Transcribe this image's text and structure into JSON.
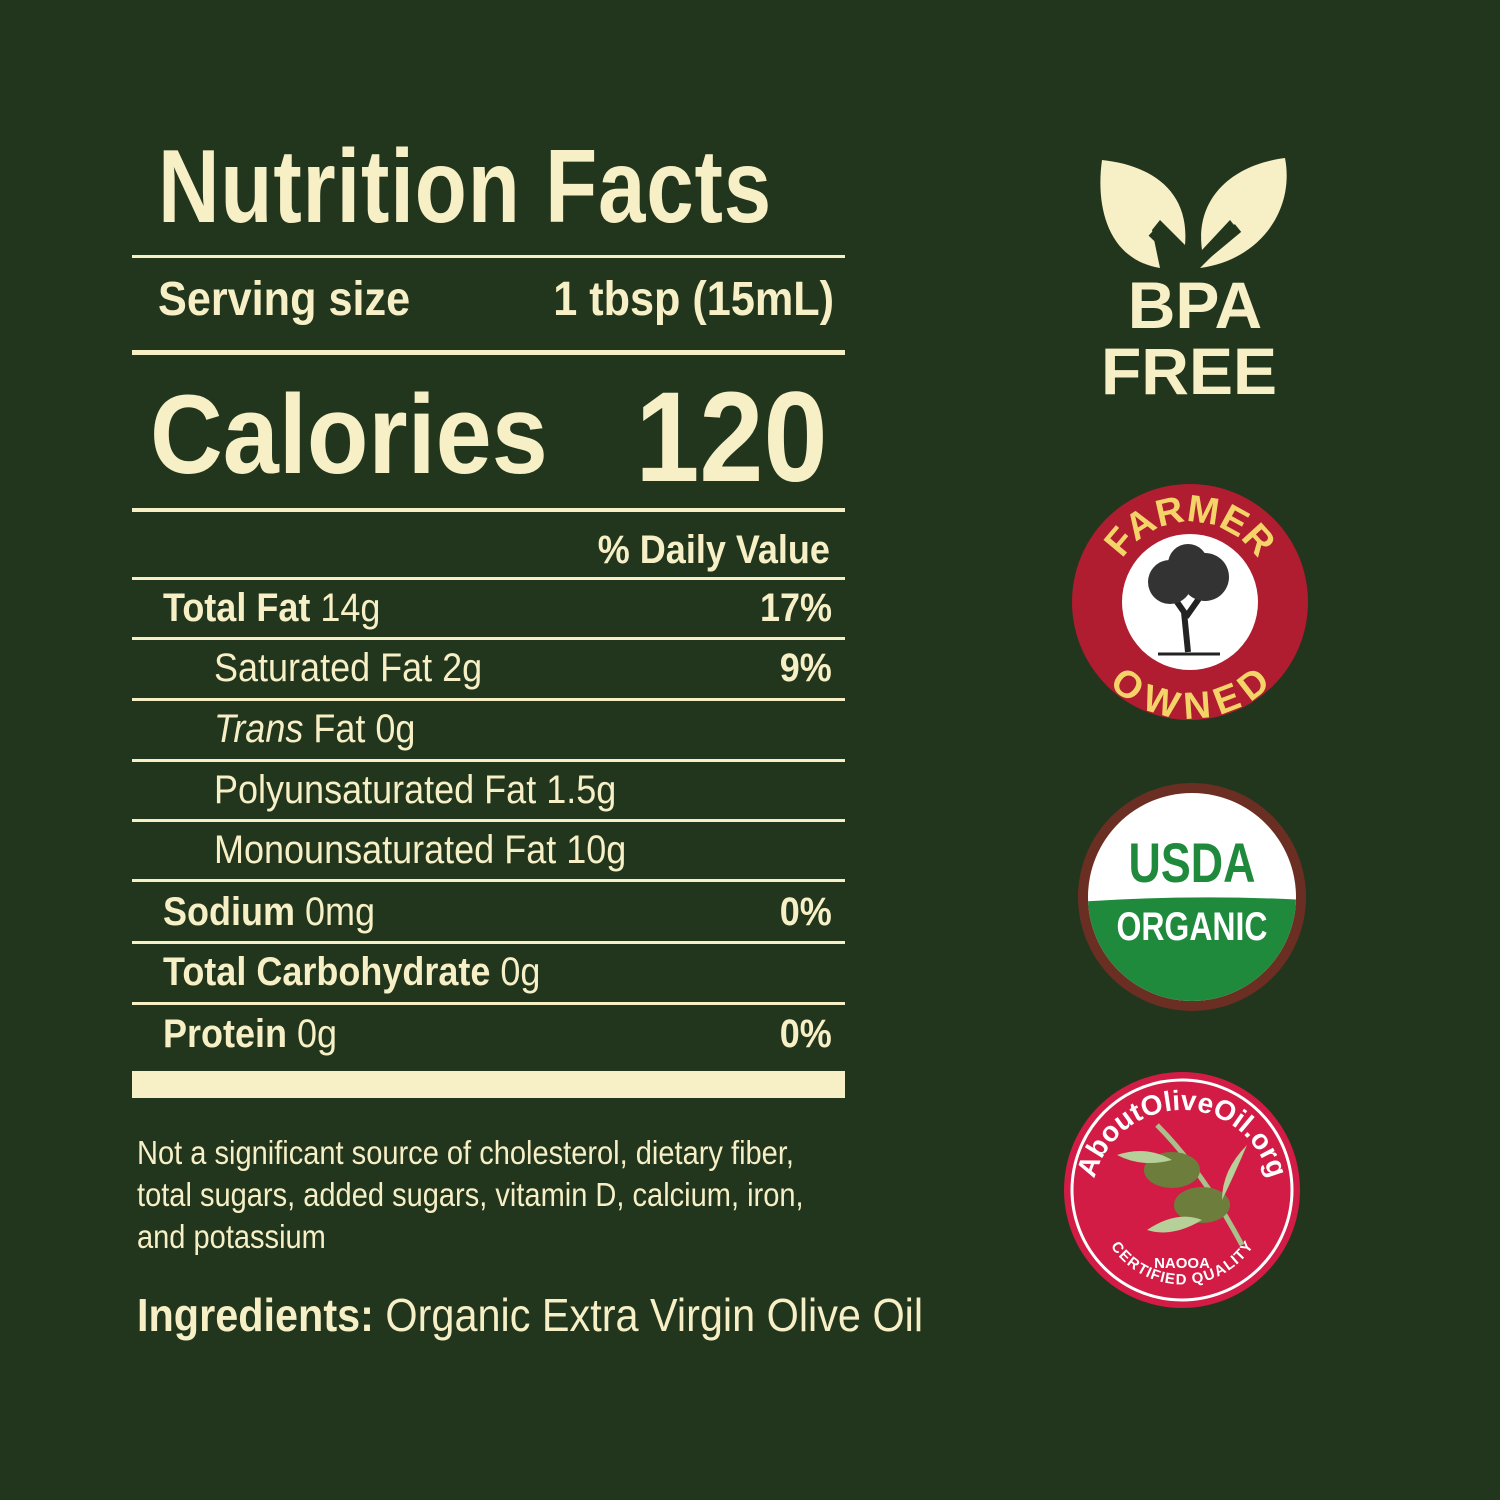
{
  "label": {
    "title": "Nutrition Facts",
    "serving_label": "Serving size",
    "serving_value": "1 tbsp (15mL)",
    "calories_label": "Calories",
    "calories_value": "120",
    "dv_header": "% Daily Value",
    "rows": [
      {
        "name": "Total Fat",
        "amount": "14g",
        "dv": "17%"
      },
      {
        "name": "Saturated Fat",
        "amount": "2g",
        "dv": "9%"
      },
      {
        "name": "Trans",
        "name2": "Fat",
        "amount": "0g"
      },
      {
        "name": "Polyunsaturated Fat",
        "amount": "1.5g"
      },
      {
        "name": "Monounsaturated Fat",
        "amount": "10g"
      },
      {
        "name": "Sodium",
        "amount": "0mg",
        "dv": "0%"
      },
      {
        "name": "Total Carbohydrate",
        "amount": "0g"
      },
      {
        "name": "Protein",
        "amount": "0g",
        "dv": "0%"
      }
    ],
    "footnote": "Not a significant source of cholesterol, dietary fiber, total sugars, added sugars, vitamin D, calcium, iron, and potassium",
    "ingredients_label": "Ingredients:",
    "ingredients_value": "Organic Extra Virgin Olive Oil"
  },
  "badges": {
    "bpa": {
      "line1": "BPA",
      "line2": "FREE",
      "icon": "leaves-icon"
    },
    "farmer": {
      "top": "FARMER",
      "bottom": "OWNED",
      "icon": "olive-tree-icon"
    },
    "usda": {
      "top": "USDA",
      "bottom": "ORGANIC"
    },
    "aboutoliveoil": {
      "top": "AboutOliveOil.org",
      "line1": "NAOOA",
      "line2": "CERTIFIED QUALITY",
      "icon": "olive-branch-icon"
    }
  },
  "colors": {
    "background": "#22361d",
    "cream": "#f7efc6",
    "red": "#b01c30",
    "usda_green": "#1f8a3c",
    "usda_brown": "#6b2e22",
    "naooa_red": "#d21c45"
  }
}
